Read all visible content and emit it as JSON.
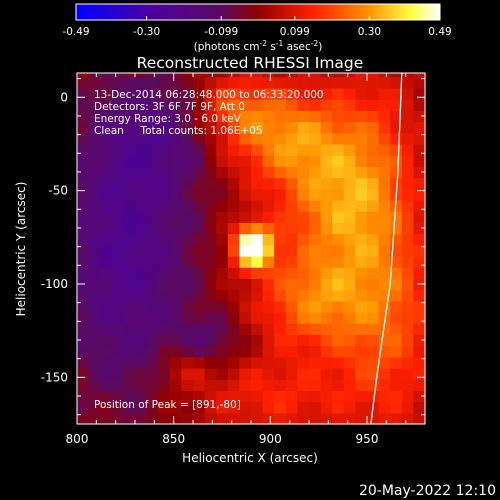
{
  "chart_data": {
    "type": "heatmap",
    "title": "Reconstructed RHESSI Image",
    "xlabel": "Heliocentric X (arcsec)",
    "ylabel": "Heliocentric Y (arcsec)",
    "xlim": [
      800,
      980
    ],
    "ylim": [
      -175,
      13
    ],
    "x_ticks": [
      800,
      850,
      900,
      950
    ],
    "y_ticks": [
      0,
      -50,
      -100,
      -150
    ],
    "colorbar": {
      "ticks": [
        "-0.49",
        "-0.30",
        "-0.099",
        "0.099",
        "0.30",
        "0.49"
      ],
      "values": [
        -0.49,
        -0.3,
        -0.099,
        0.099,
        0.3,
        0.49
      ],
      "range": [
        -0.49,
        0.49
      ],
      "units_prefix": "(photons cm",
      "units_exp1": "-2",
      "units_mid": " s",
      "units_exp2": "-1",
      "units_asec": " asec",
      "units_exp3": "-2",
      "units_suffix": ")",
      "colormap": "hot-blue",
      "colors": [
        "#0000ff",
        "#4b0082",
        "#6a0dad",
        "#b00000",
        "#ff3000",
        "#ff9000",
        "#ffff80",
        "#ffffff"
      ]
    },
    "annotations": [
      "13-Dec-2014 06:28:48.000 to 06:33:20.000",
      "Detectors: 3F 6F 7F 9F, Att 0",
      "Energy Range: 3.0 - 6.0 keV",
      "Clean     Total counts: 1.06E+05"
    ],
    "peak_label": "Position of Peak = [891,-80]",
    "peak": {
      "x": 891,
      "y": -80
    },
    "limb": [
      {
        "x": 968,
        "y": 13
      },
      {
        "x": 966,
        "y": -40
      },
      {
        "x": 962,
        "y": -100
      },
      {
        "x": 955,
        "y": -150
      },
      {
        "x": 952,
        "y": -175
      }
    ],
    "blobs": [
      {
        "x": 891,
        "y": -80,
        "sx": 7,
        "sy": 8,
        "amp": 0.55
      },
      {
        "x": 905,
        "y": -20,
        "sx": 22,
        "sy": 18,
        "amp": 0.22
      },
      {
        "x": 930,
        "y": -55,
        "sx": 20,
        "sy": 30,
        "amp": 0.22
      },
      {
        "x": 955,
        "y": -40,
        "sx": 16,
        "sy": 40,
        "amp": 0.14
      },
      {
        "x": 920,
        "y": -110,
        "sx": 20,
        "sy": 18,
        "amp": 0.2
      },
      {
        "x": 960,
        "y": -120,
        "sx": 20,
        "sy": 40,
        "amp": 0.18
      },
      {
        "x": 900,
        "y": -160,
        "sx": 30,
        "sy": 15,
        "amp": 0.12
      },
      {
        "x": 855,
        "y": -145,
        "sx": 10,
        "sy": 8,
        "amp": 0.1
      },
      {
        "x": 880,
        "y": -5,
        "sx": 14,
        "sy": 12,
        "amp": 0.15
      },
      {
        "x": 825,
        "y": -80,
        "sx": 25,
        "sy": 60,
        "amp": -0.25
      },
      {
        "x": 845,
        "y": -20,
        "sx": 20,
        "sy": 20,
        "amp": -0.12
      },
      {
        "x": 870,
        "y": -130,
        "sx": 12,
        "sy": 10,
        "amp": -0.12
      }
    ]
  },
  "footer_date": "20-May-2022 12:10"
}
